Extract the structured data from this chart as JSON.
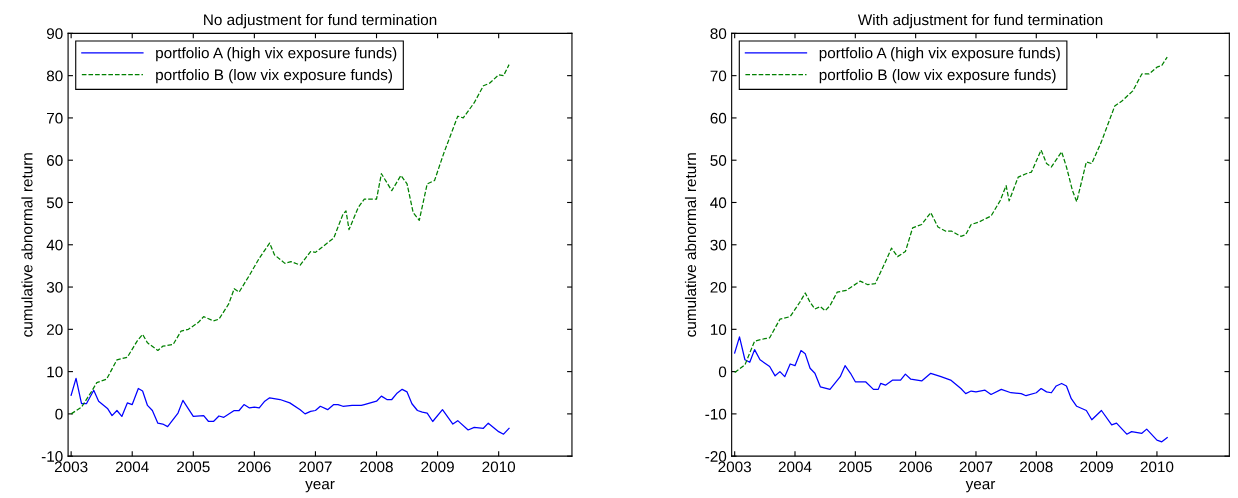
{
  "chart_data": [
    {
      "type": "line",
      "title": "No adjustment for fund termination",
      "xlabel": "year",
      "ylabel": "cumulative abnormal return",
      "xlim": [
        2002.95,
        2011.2
      ],
      "xticks": [
        2003,
        2004,
        2005,
        2006,
        2007,
        2008,
        2009,
        2010
      ],
      "ylim": [
        -10,
        90
      ],
      "yticks": [
        -10,
        0,
        10,
        20,
        30,
        40,
        50,
        60,
        70,
        80,
        90
      ],
      "grid": false,
      "legend": "top left",
      "series": [
        {
          "name": "portfolio A (high vix exposure funds)",
          "color": "#0000ff",
          "line_style": "solid",
          "x": [
            2003.0,
            2003.08,
            2003.17,
            2003.25,
            2003.37,
            2003.45,
            2003.6,
            2003.67,
            2003.75,
            2003.83,
            2003.92,
            2004.0,
            2004.1,
            2004.17,
            2004.25,
            2004.33,
            2004.42,
            2004.5,
            2004.58,
            2004.75,
            2004.83,
            2004.92,
            2005.0,
            2005.17,
            2005.25,
            2005.33,
            2005.42,
            2005.5,
            2005.67,
            2005.75,
            2005.83,
            2005.92,
            2006.0,
            2006.08,
            2006.17,
            2006.25,
            2006.42,
            2006.58,
            2006.75,
            2006.83,
            2006.92,
            2007.0,
            2007.08,
            2007.2,
            2007.3,
            2007.37,
            2007.45,
            2007.6,
            2007.75,
            2007.8,
            2008.0,
            2008.08,
            2008.17,
            2008.25,
            2008.33,
            2008.42,
            2008.5,
            2008.58,
            2008.67,
            2008.75,
            2008.83,
            2008.92,
            2009.08,
            2009.25,
            2009.33,
            2009.5,
            2009.6,
            2009.75,
            2009.83,
            2010.0,
            2010.08,
            2010.17
          ],
          "values": [
            4.4,
            8.4,
            2.4,
            2.4,
            5.6,
            3,
            1.2,
            -0.4,
            0.8,
            -0.6,
            2.6,
            2.2,
            6,
            5.4,
            2,
            0.8,
            -2.2,
            -2.4,
            -3,
            0.2,
            3.2,
            1.2,
            -0.6,
            -0.4,
            -1.8,
            -1.8,
            -0.5,
            -0.8,
            0.8,
            0.8,
            2.2,
            1.4,
            1.6,
            1.4,
            3,
            3.8,
            3.4,
            2.6,
            1,
            0,
            0.6,
            0.8,
            1.8,
            1.0,
            2.2,
            2.2,
            1.8,
            2,
            2,
            2.2,
            3,
            4.2,
            3.4,
            3.4,
            4.8,
            5.8,
            5.2,
            2.4,
            0.8,
            0.4,
            0.2,
            -1.8,
            1,
            -2.4,
            -1.6,
            -3.8,
            -3.2,
            -3.4,
            -2.2,
            -4.2,
            -4.8,
            -3.4
          ]
        },
        {
          "name": "portfolio B (low vix exposure funds)",
          "color": "#008000",
          "line_style": "dashed",
          "x": [
            2003.0,
            2003.17,
            2003.33,
            2003.42,
            2003.58,
            2003.75,
            2003.92,
            2004.08,
            2004.17,
            2004.25,
            2004.42,
            2004.5,
            2004.67,
            2004.8,
            2004.92,
            2005.08,
            2005.17,
            2005.33,
            2005.42,
            2005.58,
            2005.67,
            2005.75,
            2005.92,
            2006.08,
            2006.25,
            2006.33,
            2006.5,
            2006.6,
            2006.75,
            2006.92,
            2007.0,
            2007.3,
            2007.45,
            2007.5,
            2007.55,
            2007.7,
            2007.8,
            2008.0,
            2008.08,
            2008.25,
            2008.4,
            2008.5,
            2008.6,
            2008.7,
            2008.83,
            2008.95,
            2009.1,
            2009.33,
            2009.42,
            2009.6,
            2009.75,
            2009.85,
            2010.0,
            2010.08,
            2010.17
          ],
          "values": [
            0,
            1.6,
            5.2,
            7.4,
            8.2,
            12.8,
            13.4,
            17.2,
            18.8,
            16.8,
            15,
            16,
            16.4,
            19.6,
            20,
            21.6,
            23,
            22,
            22.4,
            26,
            29.6,
            28.8,
            32.8,
            36.8,
            40.4,
            37.6,
            35.6,
            36,
            35.2,
            38.4,
            38.2,
            41.6,
            47.2,
            48,
            43.6,
            48.8,
            50.8,
            50.8,
            56.8,
            52.8,
            56.4,
            54.4,
            47.6,
            45.8,
            54.4,
            55.2,
            61.6,
            70.4,
            70,
            73.6,
            77.6,
            78.2,
            80.2,
            80,
            82.6
          ]
        }
      ]
    },
    {
      "type": "line",
      "title": "With adjustment for fund termination",
      "xlabel": "year",
      "ylabel": "cumulative abnormal return",
      "xlim": [
        2002.95,
        2011.2
      ],
      "xticks": [
        2003,
        2004,
        2005,
        2006,
        2007,
        2008,
        2009,
        2010
      ],
      "ylim": [
        -20,
        80
      ],
      "yticks": [
        -20,
        -10,
        0,
        10,
        20,
        30,
        40,
        50,
        60,
        70,
        80
      ],
      "grid": false,
      "legend": "top left",
      "series": [
        {
          "name": "portfolio A (high vix exposure funds)",
          "color": "#0000ff",
          "line_style": "solid",
          "x": [
            2003.0,
            2003.08,
            2003.17,
            2003.25,
            2003.33,
            2003.42,
            2003.58,
            2003.67,
            2003.75,
            2003.83,
            2003.92,
            2004.0,
            2004.1,
            2004.17,
            2004.25,
            2004.33,
            2004.42,
            2004.58,
            2004.75,
            2004.83,
            2004.92,
            2005.0,
            2005.17,
            2005.3,
            2005.38,
            2005.42,
            2005.5,
            2005.62,
            2005.75,
            2005.83,
            2005.92,
            2006.1,
            2006.25,
            2006.42,
            2006.58,
            2006.75,
            2006.83,
            2006.92,
            2007.0,
            2007.15,
            2007.25,
            2007.42,
            2007.58,
            2007.75,
            2007.83,
            2008.0,
            2008.08,
            2008.17,
            2008.25,
            2008.33,
            2008.42,
            2008.5,
            2008.58,
            2008.67,
            2008.83,
            2008.92,
            2009.08,
            2009.25,
            2009.33,
            2009.5,
            2009.58,
            2009.75,
            2009.83,
            2010.0,
            2010.08,
            2010.17
          ],
          "values": [
            4.4,
            8.2,
            2.8,
            2.2,
            5.2,
            2.8,
            1.2,
            -1,
            0,
            -1.2,
            1.8,
            1.4,
            5,
            4.2,
            0.8,
            -0.4,
            -3.6,
            -4.2,
            -1.2,
            1.4,
            -0.4,
            -2.4,
            -2.4,
            -4.2,
            -4.2,
            -2.8,
            -3.2,
            -2,
            -2,
            -0.6,
            -1.8,
            -2.2,
            -0.4,
            -1.2,
            -2,
            -4,
            -5.2,
            -4.6,
            -4.8,
            -4.4,
            -5.4,
            -4.2,
            -5,
            -5.2,
            -5.7,
            -5,
            -4,
            -4.8,
            -5,
            -3.4,
            -2.8,
            -3.4,
            -6.4,
            -8.2,
            -9.2,
            -11.4,
            -9.2,
            -12.6,
            -12.2,
            -14.8,
            -14.2,
            -14.6,
            -13.6,
            -16.2,
            -16.6,
            -15.6
          ]
        },
        {
          "name": "portfolio B (low vix exposure funds)",
          "color": "#008000",
          "line_style": "dashed",
          "x": [
            2003.0,
            2003.17,
            2003.33,
            2003.5,
            2003.58,
            2003.75,
            2003.92,
            2004.08,
            2004.17,
            2004.25,
            2004.33,
            2004.42,
            2004.5,
            2004.58,
            2004.7,
            2004.85,
            2005.08,
            2005.2,
            2005.33,
            2005.5,
            2005.6,
            2005.7,
            2005.83,
            2005.95,
            2006.1,
            2006.25,
            2006.37,
            2006.5,
            2006.6,
            2006.75,
            2006.83,
            2006.92,
            2007.05,
            2007.25,
            2007.4,
            2007.5,
            2007.55,
            2007.7,
            2007.83,
            2007.92,
            2008.08,
            2008.17,
            2008.25,
            2008.42,
            2008.5,
            2008.6,
            2008.67,
            2008.83,
            2008.92,
            2009.08,
            2009.3,
            2009.42,
            2009.6,
            2009.75,
            2009.87,
            2010.0,
            2010.08,
            2010.17
          ],
          "values": [
            -0.2,
            1.6,
            7.2,
            7.8,
            8,
            12.4,
            13,
            16.4,
            18.6,
            16.4,
            14.8,
            15.4,
            14.4,
            15.6,
            18.8,
            19.2,
            21.4,
            20.6,
            20.8,
            26,
            29.2,
            27.2,
            28.4,
            34,
            34.8,
            37.6,
            34.2,
            33.2,
            33.2,
            32,
            32.4,
            34.8,
            35.4,
            36.8,
            40.4,
            44,
            40.4,
            46,
            46.8,
            47.2,
            52.4,
            49.2,
            48.4,
            52,
            48.4,
            42.8,
            40.2,
            49.6,
            49.2,
            54.4,
            62.8,
            64,
            66.4,
            70.4,
            70.4,
            72,
            72.4,
            74.4
          ]
        }
      ]
    }
  ]
}
